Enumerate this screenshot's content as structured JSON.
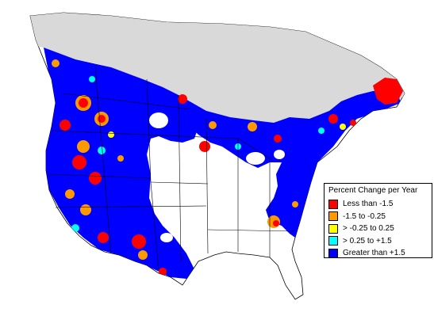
{
  "map": {
    "legend": {
      "title": "Percent Change per Year",
      "items": [
        {
          "label": "Less than -1.5",
          "color": "#ff0000"
        },
        {
          "label": "-1.5 to -0.25",
          "color": "#ff9900"
        },
        {
          "label": "> -0.25 to 0.25",
          "color": "#ffff00"
        },
        {
          "label": "> 0.25 to +1.5",
          "color": "#00ffff"
        },
        {
          "label": "Greater than +1.5",
          "color": "#0000ff"
        }
      ]
    },
    "colors": {
      "northern_unsampled": "#d9d9d9",
      "no_data": "#ffffff",
      "boundaries": "#000000"
    }
  }
}
